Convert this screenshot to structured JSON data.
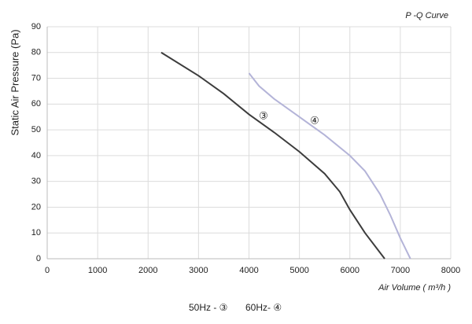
{
  "chart_data": {
    "type": "line",
    "title": "P -Q Curve",
    "x_label": "Air Volume ( m³/h )",
    "y_label": "Static Air Pressure  (Pa)",
    "xlim": [
      0,
      8000
    ],
    "xticks": [
      0,
      1000,
      2000,
      3000,
      4000,
      5000,
      6000,
      7000,
      8000
    ],
    "ylim": [
      0,
      90
    ],
    "yticks": [
      0,
      10,
      20,
      30,
      40,
      50,
      60,
      70,
      80,
      90
    ],
    "grid": true,
    "annotations": [
      "③",
      "④"
    ],
    "series": [
      {
        "name": "50Hz - ③",
        "color": "#3c3c3c",
        "x": [
          2260,
          3000,
          3500,
          4000,
          4500,
          5000,
          5500,
          5800,
          6000,
          6300,
          6690
        ],
        "values": [
          80,
          71,
          64,
          56,
          49,
          41.5,
          33,
          26,
          19,
          10,
          0
        ]
      },
      {
        "name": "60Hz- ④",
        "color": "#b4b4d8",
        "x": [
          4000,
          4200,
          4500,
          5000,
          5500,
          6000,
          6300,
          6600,
          6800,
          7000,
          7200
        ],
        "values": [
          72,
          67,
          62,
          55,
          48,
          40,
          34,
          25,
          17,
          8,
          0
        ]
      }
    ]
  }
}
